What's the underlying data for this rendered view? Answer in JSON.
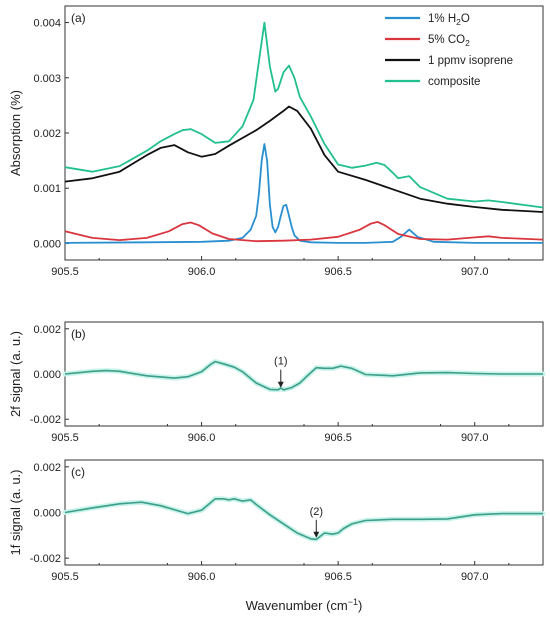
{
  "chart_data": [
    {
      "type": "line",
      "panel_label": "(a)",
      "ylabel": "Absorption (%)",
      "xlim": [
        905.5,
        907.25
      ],
      "ylim": [
        -0.0003,
        0.0043
      ],
      "yticks": [
        "0.000",
        "0.001",
        "0.002",
        "0.003",
        "0.004"
      ],
      "xticks": [
        "905.5",
        "906.0",
        "906.5",
        "907.0"
      ],
      "legend_position": "top-right",
      "series": [
        {
          "name_parts": [
            "1% H",
            "2",
            "O"
          ],
          "color": "#2a8fd0",
          "x": [
            905.5,
            905.8,
            906.0,
            906.1,
            906.15,
            906.18,
            906.2,
            906.21,
            906.22,
            906.23,
            906.24,
            906.25,
            906.26,
            906.27,
            906.28,
            906.29,
            906.3,
            906.31,
            906.32,
            906.33,
            906.34,
            906.36,
            906.4,
            906.5,
            906.6,
            906.7,
            906.73,
            906.76,
            906.79,
            906.85,
            907.0,
            907.25
          ],
          "y": [
            1e-05,
            2e-05,
            3e-05,
            5e-05,
            0.0001,
            0.00025,
            0.0005,
            0.0009,
            0.0015,
            0.0018,
            0.0015,
            0.0007,
            0.0003,
            0.0002,
            0.0003,
            0.0005,
            0.00068,
            0.0007,
            0.0005,
            0.0003,
            0.00015,
            5e-05,
            2e-05,
            1e-05,
            1e-05,
            3e-05,
            0.00012,
            0.00025,
            0.00012,
            3e-05,
            1e-05,
            1e-05
          ]
        },
        {
          "name_parts": [
            "5% CO",
            "2",
            ""
          ],
          "color": "#d9363e",
          "x": [
            905.5,
            905.6,
            905.7,
            905.8,
            905.88,
            905.93,
            905.96,
            905.99,
            906.04,
            906.1,
            906.2,
            906.3,
            906.4,
            906.5,
            906.58,
            906.62,
            906.645,
            906.67,
            906.72,
            906.8,
            906.9,
            907.0,
            907.05,
            907.1,
            907.25
          ],
          "y": [
            0.00022,
            0.0001,
            6e-05,
            0.0001,
            0.00022,
            0.00035,
            0.00038,
            0.00033,
            0.00018,
            8e-05,
            4e-05,
            5e-05,
            7e-05,
            0.00012,
            0.00025,
            0.00036,
            0.00039,
            0.00033,
            0.00017,
            8e-05,
            7e-05,
            0.00011,
            0.00013,
            0.0001,
            7e-05
          ]
        },
        {
          "name_parts": [
            "1 ppmv isoprene",
            "",
            ""
          ],
          "color": "#111111",
          "x": [
            905.5,
            905.6,
            905.7,
            905.8,
            905.85,
            905.9,
            905.95,
            906.0,
            906.05,
            906.1,
            906.2,
            906.25,
            906.3,
            906.32,
            906.35,
            906.4,
            906.45,
            906.5,
            906.6,
            906.7,
            906.8,
            906.9,
            907.0,
            907.1,
            907.25
          ],
          "y": [
            0.00112,
            0.00118,
            0.0013,
            0.0016,
            0.00173,
            0.00178,
            0.00165,
            0.00157,
            0.00162,
            0.00177,
            0.00205,
            0.00222,
            0.0024,
            0.00248,
            0.0024,
            0.00208,
            0.0016,
            0.0013,
            0.00115,
            0.00098,
            0.00081,
            0.00072,
            0.00066,
            0.00061,
            0.00057
          ]
        },
        {
          "name_parts": [
            "composite",
            "",
            ""
          ],
          "color": "#22bf8f",
          "x": [
            905.5,
            905.6,
            905.7,
            905.8,
            905.85,
            905.9,
            905.93,
            905.96,
            906.0,
            906.05,
            906.1,
            906.15,
            906.19,
            906.21,
            906.23,
            906.25,
            906.27,
            906.28,
            906.3,
            906.32,
            906.34,
            906.36,
            906.4,
            906.45,
            906.5,
            906.55,
            906.6,
            906.64,
            906.67,
            906.7,
            906.72,
            906.76,
            906.8,
            906.9,
            907.0,
            907.05,
            907.1,
            907.25
          ],
          "y": [
            0.00138,
            0.0013,
            0.0014,
            0.00168,
            0.00185,
            0.00198,
            0.00205,
            0.00207,
            0.00198,
            0.00182,
            0.00185,
            0.00212,
            0.0026,
            0.0033,
            0.004,
            0.0032,
            0.00275,
            0.0028,
            0.0031,
            0.00322,
            0.003,
            0.00265,
            0.0023,
            0.0018,
            0.00143,
            0.00137,
            0.00141,
            0.00146,
            0.00142,
            0.00128,
            0.00118,
            0.00122,
            0.00102,
            0.00081,
            0.00076,
            0.00078,
            0.00075,
            0.00065
          ]
        }
      ]
    },
    {
      "type": "line",
      "panel_label": "(b)",
      "ylabel": "2f signal (a. u.)",
      "xlim": [
        905.5,
        907.25
      ],
      "ylim": [
        -0.0023,
        0.0023
      ],
      "yticks": [
        "0.002",
        "0.000",
        "-0.002"
      ],
      "xticks": [
        "905.5",
        "906.0",
        "906.5",
        "907.0"
      ],
      "annotation": {
        "label": "(1)",
        "x": 906.29,
        "y": -0.00065
      },
      "series": [
        {
          "color": "#3d9e89",
          "x": [
            905.5,
            905.6,
            905.65,
            905.7,
            905.8,
            905.9,
            905.95,
            906.0,
            906.03,
            906.05,
            906.08,
            906.12,
            906.15,
            906.2,
            906.25,
            906.28,
            906.29,
            906.3,
            906.33,
            906.36,
            906.39,
            906.42,
            906.45,
            906.48,
            906.51,
            906.55,
            906.6,
            906.7,
            906.8,
            906.9,
            907.0,
            907.1,
            907.25
          ],
          "y": [
            0.0,
            0.00012,
            0.00015,
            0.00012,
            -8e-05,
            -0.00018,
            -0.00012,
            0.0001,
            0.0004,
            0.00055,
            0.00045,
            0.0003,
            0.0001,
            -0.0004,
            -0.00068,
            -0.0007,
            -0.00062,
            -0.0007,
            -0.0006,
            -0.0004,
            -5e-05,
            0.00028,
            0.00025,
            0.00025,
            0.00035,
            0.00025,
            -2e-05,
            -8e-05,
            5e-05,
            6e-05,
            2e-05,
            0.0,
            0.0
          ]
        }
      ]
    },
    {
      "type": "line",
      "panel_label": "(c)",
      "ylabel": "1f signal (a. u.)",
      "xlim": [
        905.5,
        907.25
      ],
      "ylim": [
        -0.0023,
        0.0023
      ],
      "yticks": [
        "0.002",
        "0.000",
        "-0.002"
      ],
      "xticks": [
        "905.5",
        "906.0",
        "906.5",
        "907.0"
      ],
      "xlabel_parts": [
        "Wavenumber (cm",
        "−1",
        ")"
      ],
      "annotation": {
        "label": "(2)",
        "x": 906.42,
        "y": -0.00115
      },
      "series": [
        {
          "color": "#3d9e89",
          "x": [
            905.5,
            905.6,
            905.7,
            905.78,
            905.85,
            905.95,
            906.0,
            906.03,
            906.05,
            906.08,
            906.1,
            906.12,
            906.15,
            906.18,
            906.2,
            906.25,
            906.3,
            906.35,
            906.4,
            906.42,
            906.45,
            906.48,
            906.5,
            906.52,
            906.55,
            906.6,
            906.7,
            906.8,
            906.9,
            907.0,
            907.1,
            907.25
          ],
          "y": [
            0.0,
            0.0002,
            0.00038,
            0.00045,
            0.0003,
            -5e-05,
            0.0001,
            0.0004,
            0.0006,
            0.0006,
            0.00055,
            0.0006,
            0.0005,
            0.00055,
            0.00035,
            -0.0001,
            -0.0005,
            -0.0009,
            -0.00115,
            -0.00118,
            -0.0009,
            -0.00095,
            -0.0009,
            -0.0007,
            -0.0005,
            -0.00035,
            -0.0003,
            -0.0003,
            -0.00028,
            -0.0001,
            -5e-05,
            -5e-05
          ]
        }
      ]
    }
  ]
}
